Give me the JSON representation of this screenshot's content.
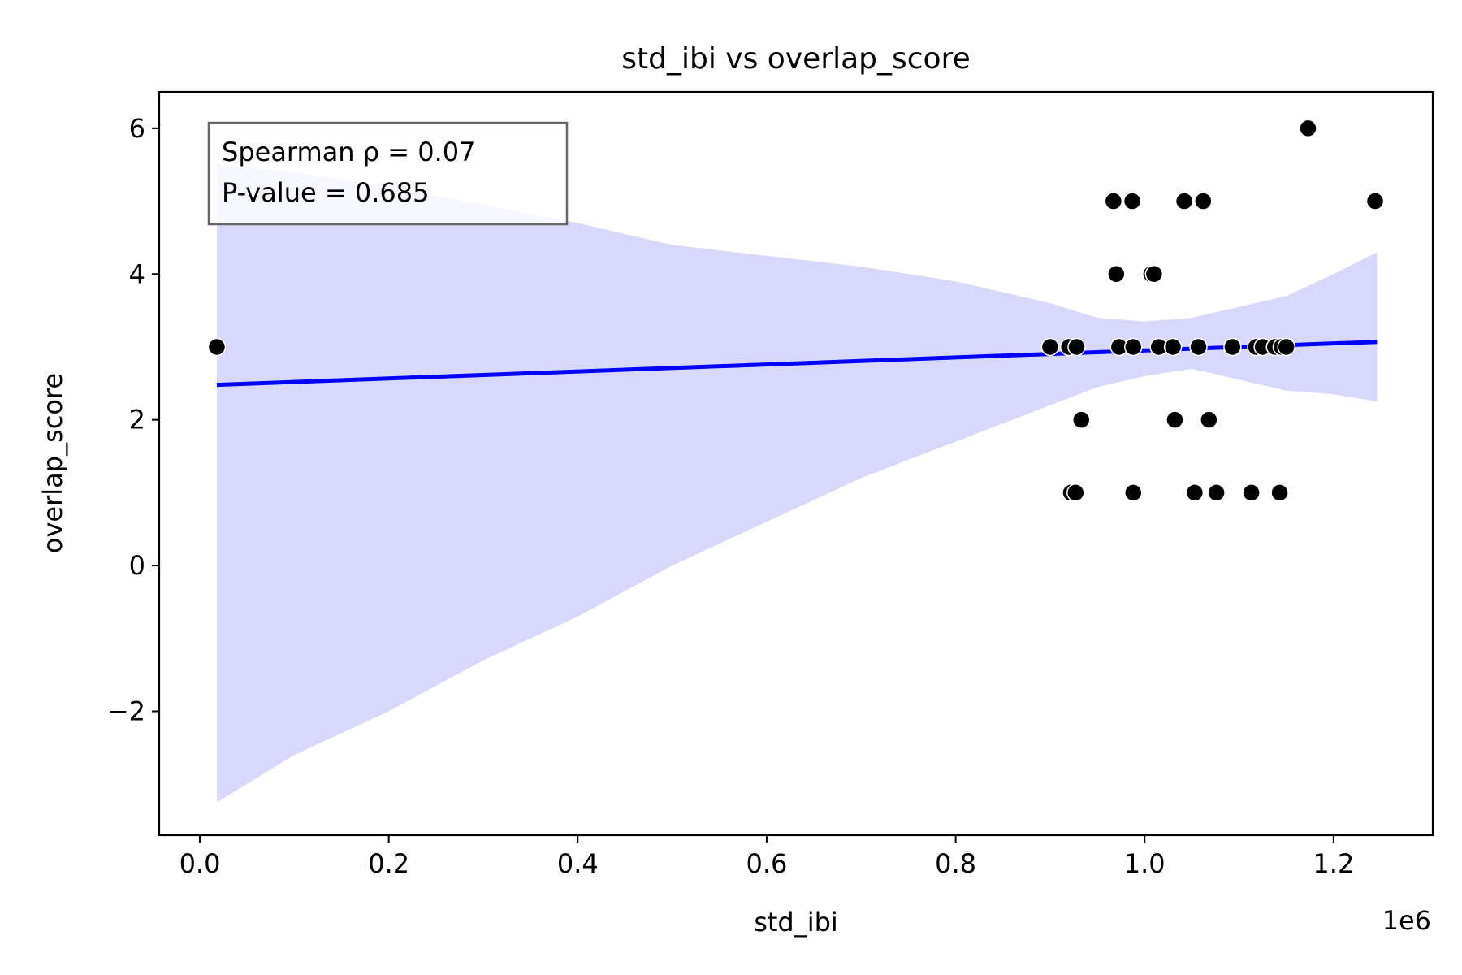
{
  "chart_data": {
    "type": "scatter",
    "title": "std_ibi vs overlap_score",
    "xlabel": "std_ibi",
    "ylabel": "overlap_score",
    "x_offset_label": "1e6",
    "x_scale_factor": 1000000,
    "xlim": [
      -43000,
      1305000
    ],
    "ylim": [
      -3.7,
      6.5
    ],
    "x_ticks": [
      0,
      200000,
      400000,
      600000,
      800000,
      1000000,
      1200000
    ],
    "x_tick_labels": [
      "0.0",
      "0.2",
      "0.4",
      "0.6",
      "0.8",
      "1.0",
      "1.2"
    ],
    "y_ticks": [
      -2,
      0,
      2,
      4,
      6
    ],
    "y_tick_labels": [
      "−2",
      "0",
      "2",
      "4",
      "6"
    ],
    "grid": false,
    "annotation": {
      "line1": "Spearman ρ = 0.07",
      "line2": "P-value = 0.685"
    },
    "points": [
      {
        "x": 18000,
        "y": 3
      },
      {
        "x": 900000,
        "y": 3
      },
      {
        "x": 920000,
        "y": 3
      },
      {
        "x": 928000,
        "y": 3
      },
      {
        "x": 922000,
        "y": 1
      },
      {
        "x": 927000,
        "y": 1
      },
      {
        "x": 933000,
        "y": 2
      },
      {
        "x": 967000,
        "y": 5
      },
      {
        "x": 987000,
        "y": 5
      },
      {
        "x": 970000,
        "y": 4
      },
      {
        "x": 973000,
        "y": 3
      },
      {
        "x": 988000,
        "y": 3
      },
      {
        "x": 988000,
        "y": 1
      },
      {
        "x": 1007000,
        "y": 4
      },
      {
        "x": 1010000,
        "y": 4
      },
      {
        "x": 1015000,
        "y": 3
      },
      {
        "x": 1030000,
        "y": 3
      },
      {
        "x": 1032000,
        "y": 2
      },
      {
        "x": 1042000,
        "y": 5
      },
      {
        "x": 1062000,
        "y": 5
      },
      {
        "x": 1053000,
        "y": 1
      },
      {
        "x": 1057000,
        "y": 3
      },
      {
        "x": 1068000,
        "y": 2
      },
      {
        "x": 1076000,
        "y": 1
      },
      {
        "x": 1093000,
        "y": 3
      },
      {
        "x": 1113000,
        "y": 1
      },
      {
        "x": 1118000,
        "y": 3
      },
      {
        "x": 1125000,
        "y": 3
      },
      {
        "x": 1138000,
        "y": 3
      },
      {
        "x": 1143000,
        "y": 1
      },
      {
        "x": 1145000,
        "y": 3
      },
      {
        "x": 1150000,
        "y": 3
      },
      {
        "x": 1173000,
        "y": 6
      },
      {
        "x": 1244000,
        "y": 5
      }
    ],
    "regression_line": {
      "color": "#0000ff",
      "x": [
        18000,
        1246000
      ],
      "y": [
        2.48,
        3.07
      ]
    },
    "confidence_band": {
      "color": "#d8d8fc",
      "x": [
        18000,
        100000,
        200000,
        300000,
        400000,
        500000,
        600000,
        700000,
        800000,
        900000,
        950000,
        1000000,
        1050000,
        1100000,
        1150000,
        1200000,
        1246000
      ],
      "upper": [
        5.5,
        5.4,
        5.2,
        4.95,
        4.7,
        4.4,
        4.25,
        4.1,
        3.9,
        3.6,
        3.4,
        3.35,
        3.4,
        3.55,
        3.7,
        4.0,
        4.3
      ],
      "lower": [
        -3.25,
        -2.6,
        -2.0,
        -1.3,
        -0.7,
        0.0,
        0.6,
        1.2,
        1.7,
        2.2,
        2.45,
        2.6,
        2.7,
        2.55,
        2.4,
        2.35,
        2.25
      ]
    },
    "point_color": "#000000",
    "legend": null
  }
}
